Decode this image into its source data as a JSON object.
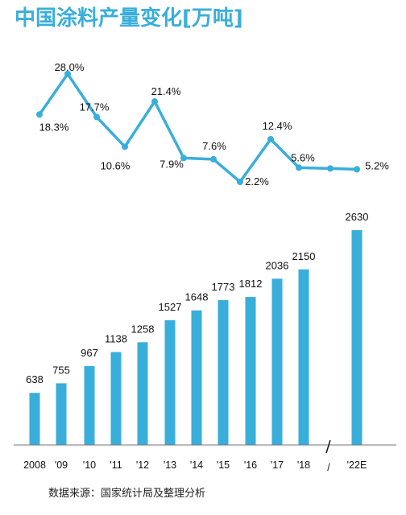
{
  "title": "中国涂料产量变化[万吨]",
  "source": "数据来源：国家统计局及整理分析",
  "colors": {
    "accent": "#39AEDB",
    "text": "#111111"
  },
  "chart_data": [
    {
      "type": "line",
      "name": "growth",
      "categories": [
        "2008",
        "'09",
        "'10",
        "'11",
        "'12",
        "'13",
        "'14",
        "'15",
        "'16",
        "'17",
        "'18",
        "'22E"
      ],
      "values": [
        18.3,
        28.0,
        17.7,
        10.6,
        21.4,
        7.9,
        7.6,
        2.2,
        12.4,
        5.6,
        5.4,
        5.2
      ],
      "data_labels": [
        "18.3%",
        "28.0%",
        "17.7%",
        "10.6%",
        "21.4%",
        "7.9%",
        "7.6%",
        "2.2%",
        "12.4%",
        "5.6%",
        "",
        "5.2%"
      ],
      "unit": "%"
    },
    {
      "type": "bar",
      "name": "production",
      "categories": [
        "2008",
        "'09",
        "'10",
        "'11",
        "'12",
        "'13",
        "'14",
        "'15",
        "'16",
        "'17",
        "'18",
        "'22E"
      ],
      "values": [
        638,
        755,
        967,
        1138,
        1258,
        1527,
        1648,
        1773,
        1812,
        2036,
        2150,
        2630
      ],
      "data_labels": [
        "638",
        "755",
        "967",
        "1138",
        "1258",
        "1527",
        "1648",
        "1773",
        "1812",
        "2036",
        "2150",
        "2630"
      ],
      "axis_break": "/"
    }
  ]
}
